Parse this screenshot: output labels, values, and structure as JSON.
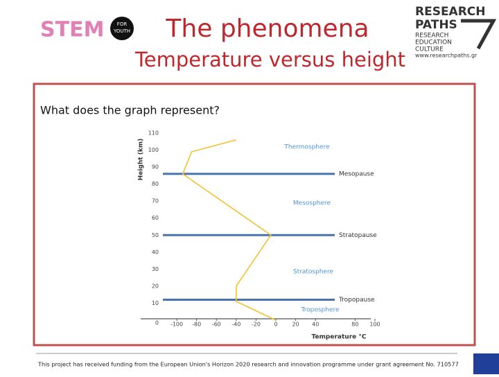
{
  "header": {
    "title": "The phenomena",
    "subtitle": "Temperature versus height"
  },
  "logo_left": {
    "name": "STEM",
    "badge_top": "FOR",
    "badge_bottom": "YOUTH"
  },
  "logo_right": {
    "line1": "RESEARCH",
    "line2": "PATHS",
    "tag1": "RESEARCH",
    "tag2": "EDUCATION",
    "tag3": "CULTURE",
    "url": "www.researchpaths.gr"
  },
  "question": "What does the graph represent?",
  "footer": "This project has received funding from the European Union's Horizon 2020 research and innovation programme under grant agreement No. 710577",
  "chart_data": {
    "type": "line",
    "x_label": "Temperature °C",
    "y_label": "Height (km)",
    "x": [
      0,
      -40,
      -40,
      -5,
      -94,
      -85,
      -40
    ],
    "values": [
      0,
      11,
      20,
      50,
      86,
      99,
      106
    ],
    "color": "#f2c232",
    "xlim": [
      -135,
      100
    ],
    "ylim": [
      0,
      110
    ],
    "xticks": [
      -100,
      -80,
      -60,
      -40,
      -20,
      0,
      20,
      40,
      80,
      100
    ],
    "yticks": [
      0,
      10,
      20,
      30,
      40,
      50,
      60,
      70,
      80,
      90,
      100,
      110
    ],
    "levels": {
      "color": "#4a72b0",
      "items": [
        {
          "name": "Tropopause",
          "value": 12
        },
        {
          "name": "Stratopause",
          "value": 50
        },
        {
          "name": "Mesopause",
          "value": 86
        }
      ]
    },
    "layers": {
      "color": "#4f93d3",
      "names": [
        "Troposphere",
        "Stratosphere",
        "Mesosphere",
        "Thermosphere"
      ]
    }
  }
}
